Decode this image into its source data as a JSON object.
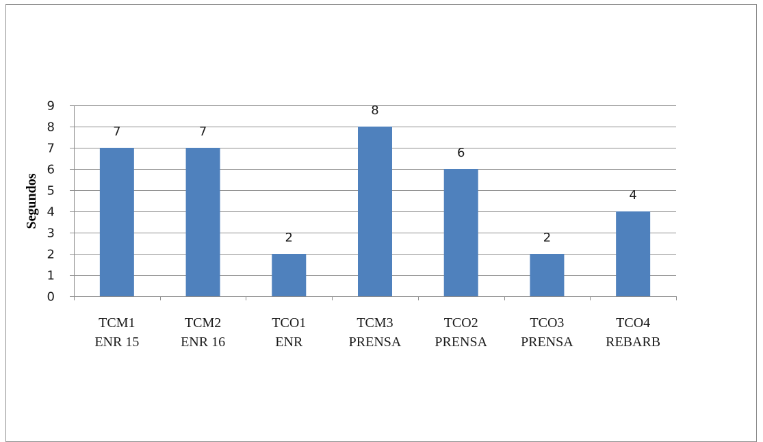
{
  "chart_data": {
    "type": "bar",
    "categories": [
      [
        "TCM1",
        "ENR 15"
      ],
      [
        "TCM2",
        "ENR 16"
      ],
      [
        "TCO1",
        "ENR"
      ],
      [
        "TCM3",
        "PRENSA"
      ],
      [
        "TCO2",
        "PRENSA"
      ],
      [
        "TCO3",
        "PRENSA"
      ],
      [
        "TCO4",
        "REBARB"
      ]
    ],
    "values": [
      7,
      7,
      2,
      8,
      6,
      2,
      4
    ],
    "ylabel": "Segundos",
    "xlabel": "",
    "ylim": [
      0,
      9
    ],
    "yticks": [
      0,
      1,
      2,
      3,
      4,
      5,
      6,
      7,
      8,
      9
    ],
    "grid": true,
    "legend": "none",
    "data_labels": true,
    "colors": {
      "bar": "#4f81bd",
      "grid": "#8c8c8c",
      "axis": "#8c8c8c"
    }
  }
}
